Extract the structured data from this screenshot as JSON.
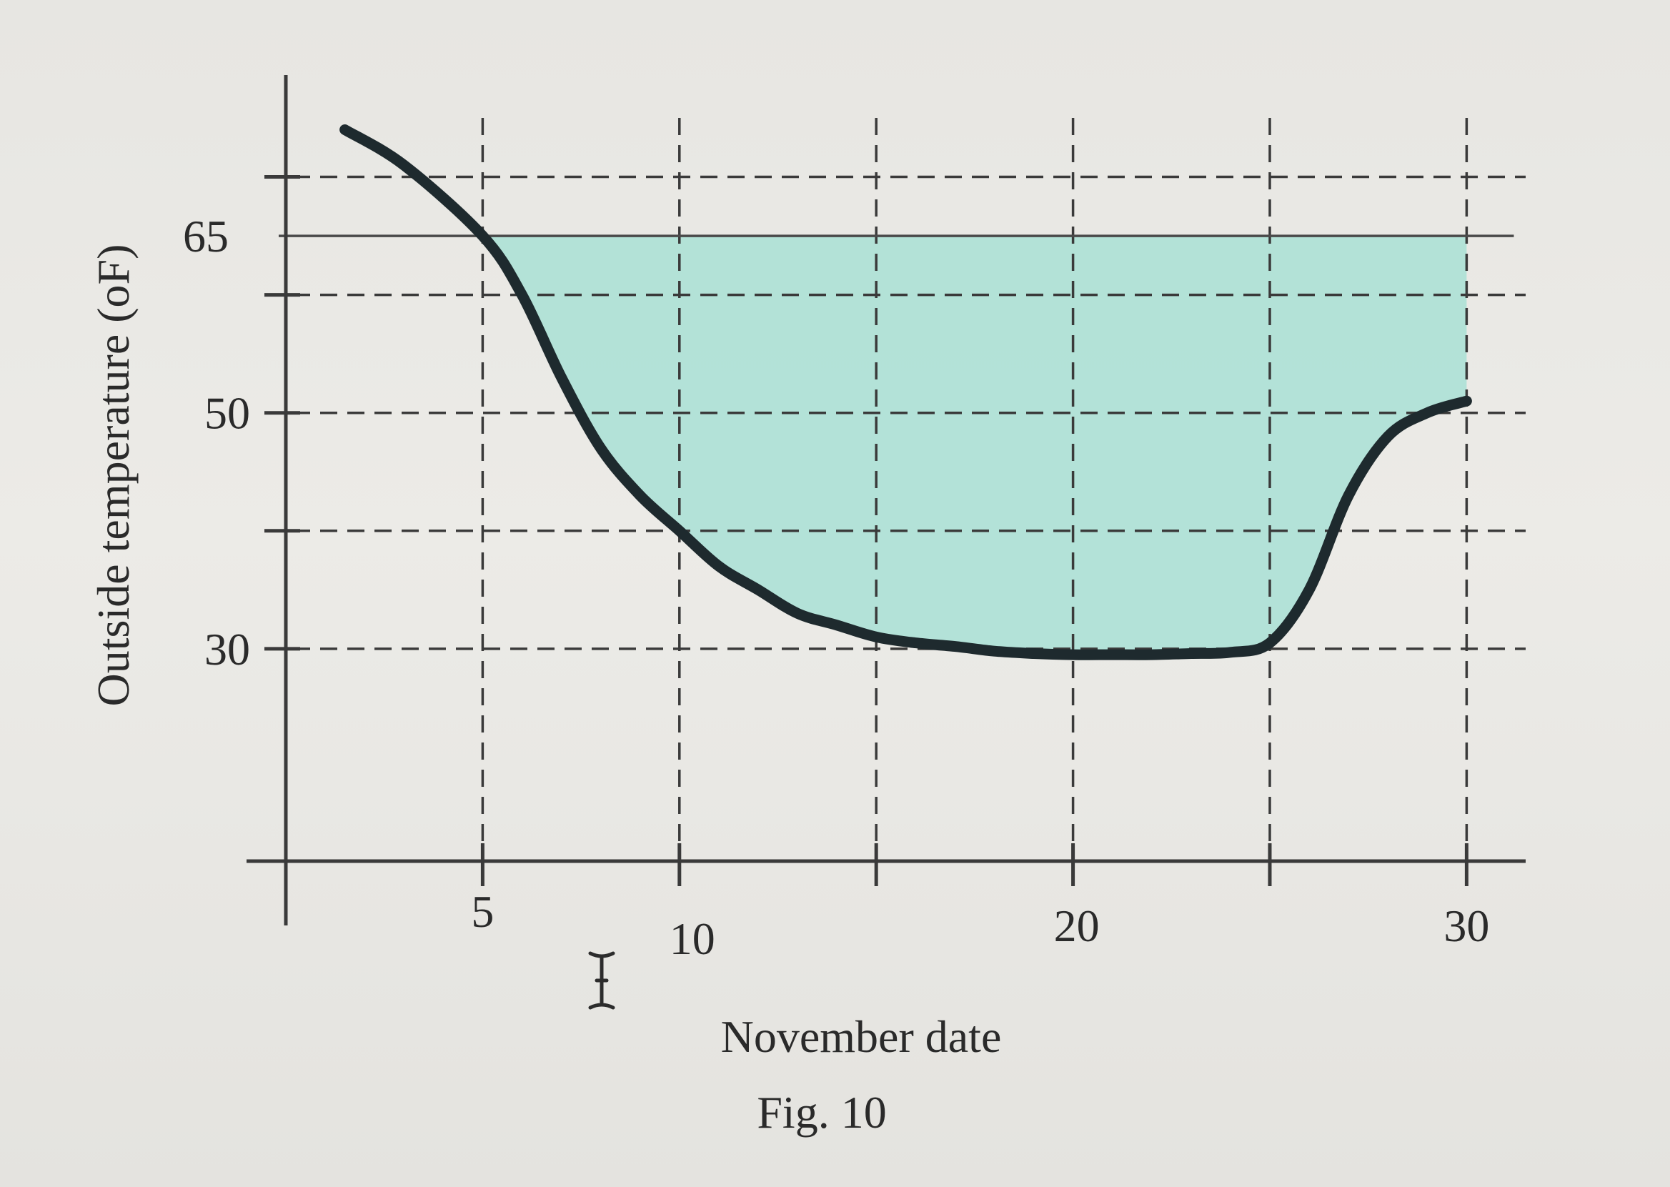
{
  "chart_data": {
    "type": "area",
    "xlabel": "November date",
    "ylabel": "Outside temperature  (oF)",
    "caption": "Fig. 10",
    "xlim": [
      0,
      31.5
    ],
    "ylim": [
      12,
      75
    ],
    "x_ticks": [
      5,
      10,
      15,
      20,
      25,
      30
    ],
    "x_tick_labels": [
      "5",
      "10",
      "",
      "20",
      "",
      "30"
    ],
    "y_ticks": [
      30,
      40,
      50,
      60,
      70
    ],
    "y_tick_labels": [
      "30",
      "",
      "50",
      "",
      ""
    ],
    "y_extra_labels": [
      {
        "value": 65,
        "label": "65"
      }
    ],
    "reference_line": {
      "y": 65
    },
    "grid": true,
    "shaded_region": "between y = 65 and the curve, from x = 5 to x = 30",
    "shade_color": "#a9e0d5",
    "curve_color": "#1e2a2e",
    "series": [
      {
        "x": [
          1.5,
          3,
          5,
          6,
          7,
          8,
          9,
          10,
          11,
          12,
          13,
          14,
          15,
          16,
          17,
          18,
          19,
          20,
          21,
          22,
          23,
          24,
          25,
          26,
          27,
          28,
          29,
          30
        ],
        "y": [
          74,
          71,
          65,
          60,
          53,
          47,
          43,
          40,
          37,
          35,
          33,
          32,
          31,
          30.5,
          30.2,
          29.8,
          29.6,
          29.5,
          29.5,
          29.5,
          29.6,
          29.7,
          30.5,
          35,
          43,
          48,
          50,
          51
        ]
      }
    ]
  },
  "cursor_icon": "text-cursor-icon"
}
